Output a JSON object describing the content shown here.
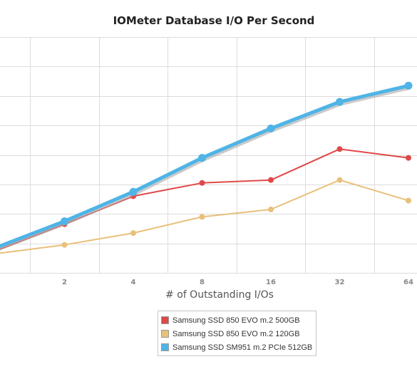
{
  "chart_data": {
    "type": "line",
    "title": "IOMeter Database I/O Per Second",
    "xlabel": "# of Outstanding I/Os",
    "ylabel": "",
    "x": [
      1,
      2,
      4,
      8,
      16,
      32,
      64
    ],
    "x_tick_labels": [
      "",
      "2",
      "4",
      "8",
      "16",
      "32",
      "64"
    ],
    "ylim": [
      0,
      8
    ],
    "grid": true,
    "legend_position": "bottom",
    "series": [
      {
        "name": "Samsung SSD 850 EVO m.2 500GB",
        "color": "#e04848",
        "values": [
          0.75,
          1.65,
          2.6,
          3.05,
          3.15,
          4.2,
          3.9
        ]
      },
      {
        "name": "Samsung SSD 850 EVO m.2 120GB",
        "color": "#e8c07a",
        "values": [
          0.65,
          0.95,
          1.35,
          1.9,
          2.15,
          3.15,
          2.45
        ]
      },
      {
        "name": "Samsung SSD SM951 m.2 PCIe 512GB",
        "color": "#4fb4e6",
        "values": [
          0.85,
          1.75,
          2.75,
          3.9,
          4.9,
          5.8,
          6.35
        ]
      }
    ]
  }
}
